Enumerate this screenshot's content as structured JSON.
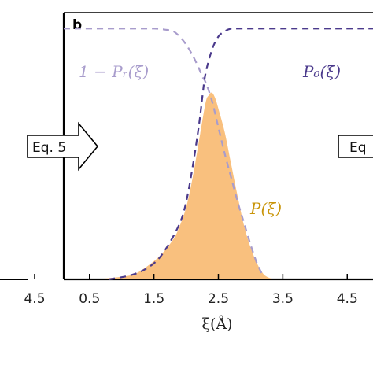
{
  "chart_data": {
    "type": "area",
    "panel_label": "b",
    "xlabel": "ξ(Å)",
    "xlim": [
      0.1,
      4.9
    ],
    "ylim": [
      0,
      1.0
    ],
    "x_ticks": [
      0.5,
      1.5,
      2.5,
      3.5,
      4.5
    ],
    "x_tick_labels": [
      "0.5",
      "1.5",
      "2.5",
      "3.5",
      "4.5"
    ],
    "left_panel_tick_labels": [
      "4.5"
    ],
    "grid": false,
    "arrows": [
      {
        "label": "Eq. 5",
        "side": "left"
      },
      {
        "label": "Eq",
        "side": "right"
      }
    ],
    "series": [
      {
        "name": "1 − P_r(ξ)",
        "style": "dashed",
        "color": "#a89ccc",
        "x": [
          0.1,
          1.0,
          1.5,
          1.7,
          1.8,
          1.9,
          2.0,
          2.1,
          2.2,
          2.25,
          2.3,
          2.4,
          2.5,
          2.6,
          2.7,
          2.8,
          2.9,
          3.0,
          3.1,
          3.2
        ],
        "values": [
          0.94,
          0.94,
          0.94,
          0.935,
          0.93,
          0.91,
          0.88,
          0.84,
          0.79,
          0.76,
          0.74,
          0.67,
          0.57,
          0.47,
          0.38,
          0.29,
          0.21,
          0.13,
          0.06,
          0.01
        ]
      },
      {
        "name": "P_0(ξ)",
        "style": "dashed",
        "color": "#4b3a8c",
        "x": [
          0.8,
          1.2,
          1.5,
          1.7,
          1.9,
          2.0,
          2.1,
          2.2,
          2.25,
          2.3,
          2.4,
          2.5,
          2.6,
          2.7,
          2.8,
          3.0,
          3.5,
          4.0,
          4.9
        ],
        "values": [
          0.0,
          0.02,
          0.06,
          0.12,
          0.21,
          0.29,
          0.42,
          0.58,
          0.68,
          0.77,
          0.86,
          0.91,
          0.93,
          0.94,
          0.94,
          0.94,
          0.94,
          0.94,
          0.94
        ]
      },
      {
        "name": "P(ξ)",
        "style": "filled",
        "color": "#f9c07e",
        "edge_color": "#f0a84e",
        "x": [
          0.6,
          1.0,
          1.2,
          1.4,
          1.6,
          1.8,
          1.9,
          2.0,
          2.1,
          2.2,
          2.3,
          2.35,
          2.4,
          2.45,
          2.5,
          2.6,
          2.7,
          2.8,
          2.9,
          3.0,
          3.1,
          3.2,
          3.3,
          3.4
        ],
        "values": [
          0.0,
          0.01,
          0.02,
          0.05,
          0.09,
          0.15,
          0.2,
          0.27,
          0.38,
          0.52,
          0.66,
          0.69,
          0.7,
          0.68,
          0.64,
          0.55,
          0.43,
          0.31,
          0.2,
          0.12,
          0.06,
          0.02,
          0.005,
          0.0
        ]
      }
    ],
    "legend_labels": [
      {
        "series": 0,
        "text": "1 − Pᵣ(ξ)"
      },
      {
        "series": 1,
        "text": "P₀(ξ)"
      },
      {
        "series": 2,
        "text": "P(ξ)"
      }
    ]
  }
}
